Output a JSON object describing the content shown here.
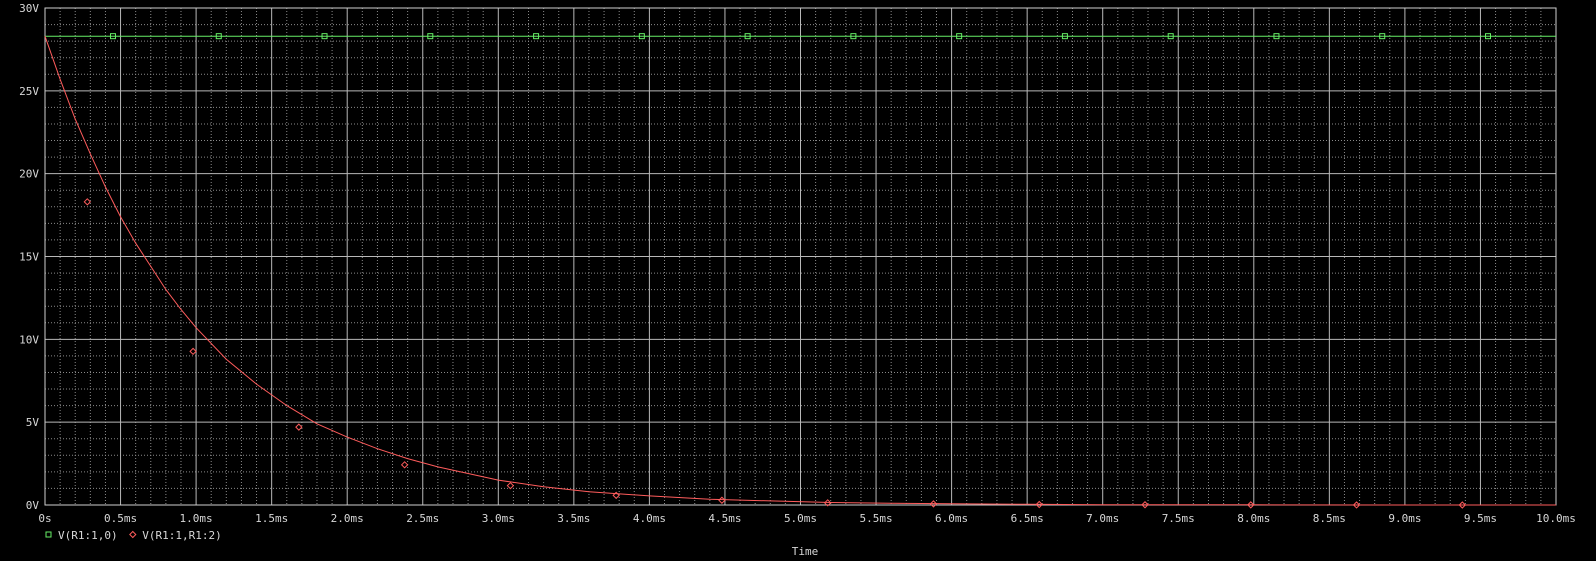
{
  "chart_data": {
    "type": "line",
    "xlabel": "Time",
    "ylabel": "",
    "xlim": [
      0,
      10
    ],
    "ylim": [
      0,
      30
    ],
    "x_unit": "ms",
    "x_ticks": [
      "0s",
      "0.5ms",
      "1.0ms",
      "1.5ms",
      "2.0ms",
      "2.5ms",
      "3.0ms",
      "3.5ms",
      "4.0ms",
      "4.5ms",
      "5.0ms",
      "5.5ms",
      "6.0ms",
      "6.5ms",
      "7.0ms",
      "7.5ms",
      "8.0ms",
      "8.5ms",
      "9.0ms",
      "9.5ms",
      "10.0ms"
    ],
    "y_ticks": [
      "0V",
      "5V",
      "10V",
      "15V",
      "20V",
      "25V",
      "30V"
    ],
    "grid": true,
    "legend_position": "bottom-left",
    "series": [
      {
        "name": "V(R1:1,0)",
        "color": "#66ee66",
        "marker": "square",
        "x": [
          0,
          0.5,
          1.0,
          1.5,
          2.0,
          2.5,
          3.0,
          3.5,
          4.0,
          4.5,
          5.0,
          5.5,
          6.0,
          6.5,
          7.0,
          7.5,
          8.0,
          8.5,
          9.0,
          9.5,
          10.0
        ],
        "values": [
          28.3,
          28.3,
          28.3,
          28.3,
          28.3,
          28.3,
          28.3,
          28.3,
          28.3,
          28.3,
          28.3,
          28.3,
          28.3,
          28.3,
          28.3,
          28.3,
          28.3,
          28.3,
          28.3,
          28.3,
          28.3
        ]
      },
      {
        "name": "V(R1:1,R1:2)",
        "color": "#ff5c5c",
        "marker": "diamond",
        "x": [
          0,
          0.1,
          0.2,
          0.3,
          0.4,
          0.5,
          0.6,
          0.7,
          0.8,
          0.9,
          1.0,
          1.2,
          1.4,
          1.6,
          1.8,
          2.0,
          2.2,
          2.4,
          2.6,
          2.8,
          3.0,
          3.3,
          3.6,
          4.0,
          4.4,
          4.8,
          5.2,
          5.6,
          6.0,
          6.5,
          7.0,
          8.0,
          9.0,
          10.0
        ],
        "values": [
          28.3,
          25.7,
          23.3,
          21.2,
          19.2,
          17.4,
          15.8,
          14.4,
          13.0,
          11.8,
          10.7,
          8.8,
          7.3,
          6.0,
          4.9,
          4.1,
          3.4,
          2.8,
          2.3,
          1.9,
          1.5,
          1.1,
          0.8,
          0.55,
          0.35,
          0.25,
          0.15,
          0.1,
          0.07,
          0.04,
          0.02,
          0.01,
          0.0,
          0.0
        ]
      }
    ]
  }
}
